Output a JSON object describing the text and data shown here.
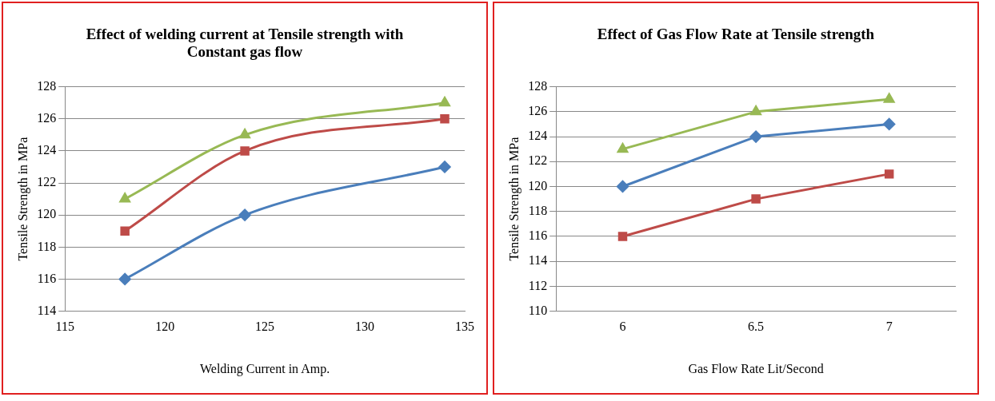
{
  "chart_data": [
    {
      "type": "line",
      "title": "Effect of welding current at Tensile strength with Constant gas flow",
      "xlabel": "Welding Current in Amp.",
      "ylabel": "Tensile Strength in MPa",
      "x": [
        118,
        124,
        134
      ],
      "xlim": [
        115,
        135
      ],
      "xticks": [
        115,
        120,
        125,
        130,
        135
      ],
      "ylim": [
        114,
        128
      ],
      "yticks": [
        114,
        116,
        118,
        120,
        122,
        124,
        126,
        128
      ],
      "grid": "y",
      "legend": false,
      "series": [
        {
          "color": "#4a7ebb",
          "marker": "diamond",
          "values": [
            116,
            120,
            123
          ]
        },
        {
          "color": "#be4b48",
          "marker": "square",
          "values": [
            119,
            124,
            126
          ]
        },
        {
          "color": "#98b954",
          "marker": "triangle",
          "values": [
            121,
            125,
            127
          ]
        }
      ]
    },
    {
      "type": "line",
      "title": "Effect of Gas Flow Rate at Tensile strength",
      "xlabel": "Gas Flow Rate Lit/Second",
      "ylabel": "Tensile Strength in MPa",
      "categories": [
        "6",
        "6.5",
        "7"
      ],
      "ylim": [
        110,
        128
      ],
      "yticks": [
        110,
        112,
        114,
        116,
        118,
        120,
        122,
        124,
        126,
        128
      ],
      "grid": "y",
      "legend": false,
      "series": [
        {
          "color": "#4a7ebb",
          "marker": "diamond",
          "values": [
            120,
            124,
            125
          ]
        },
        {
          "color": "#be4b48",
          "marker": "square",
          "values": [
            116,
            119,
            121
          ]
        },
        {
          "color": "#98b954",
          "marker": "triangle",
          "values": [
            123,
            126,
            127
          ]
        }
      ]
    }
  ]
}
